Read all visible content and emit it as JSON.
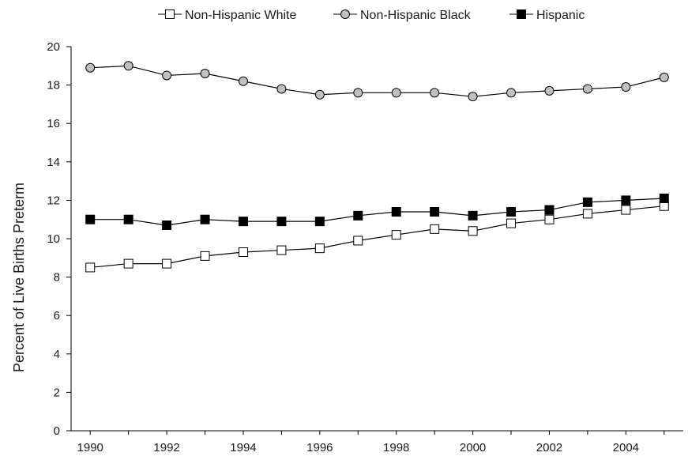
{
  "chart_data": {
    "type": "line",
    "title": "",
    "xlabel": "",
    "ylabel": "Percent of Live Births Preterm",
    "x": [
      1990,
      1991,
      1992,
      1993,
      1994,
      1995,
      1996,
      1997,
      1998,
      1999,
      2000,
      2001,
      2002,
      2003,
      2004,
      2005
    ],
    "x_tick_labels": [
      "1990",
      "1992",
      "1994",
      "1996",
      "1998",
      "2000",
      "2002",
      "2004"
    ],
    "x_ticks": [
      1990,
      1992,
      1994,
      1996,
      1998,
      2000,
      2002,
      2004
    ],
    "y_ticks": [
      0,
      2,
      4,
      6,
      8,
      10,
      12,
      14,
      16,
      18,
      20
    ],
    "y_tick_labels": [
      "0",
      "2",
      "4",
      "6",
      "8",
      "10",
      "12",
      "14",
      "16",
      "18",
      "20"
    ],
    "xlim": [
      1989.5,
      2005.5
    ],
    "ylim": [
      0,
      20
    ],
    "grid": false,
    "legend_position": "top",
    "series": [
      {
        "name": "Non-Hispanic White",
        "marker": "square-open",
        "color": "#000000",
        "values": [
          8.5,
          8.7,
          8.7,
          9.1,
          9.3,
          9.4,
          9.5,
          9.9,
          10.2,
          10.5,
          10.4,
          10.8,
          11.0,
          11.3,
          11.5,
          11.7
        ]
      },
      {
        "name": "Non-Hispanic Black",
        "marker": "circle-gray",
        "color": "#000000",
        "values": [
          18.9,
          19.0,
          18.5,
          18.6,
          18.2,
          17.8,
          17.5,
          17.6,
          17.6,
          17.6,
          17.4,
          17.6,
          17.7,
          17.8,
          17.9,
          18.4
        ]
      },
      {
        "name": "Hispanic",
        "marker": "square-filled",
        "color": "#000000",
        "values": [
          11.0,
          11.0,
          10.7,
          11.0,
          10.9,
          10.9,
          10.9,
          11.2,
          11.4,
          11.4,
          11.2,
          11.4,
          11.5,
          11.9,
          12.0,
          12.1
        ]
      }
    ]
  }
}
